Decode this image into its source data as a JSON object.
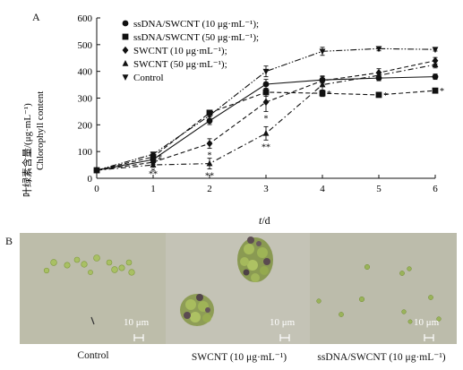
{
  "panels": {
    "a_label": "A",
    "b_label": "B"
  },
  "chart_data": {
    "type": "line",
    "x": [
      0,
      1,
      2,
      3,
      4,
      5,
      6
    ],
    "xlim": [
      0,
      6
    ],
    "ylim": [
      0,
      600
    ],
    "xticks": [
      "0",
      "1",
      "2",
      "3",
      "4",
      "5",
      "6"
    ],
    "yticks": [
      "0",
      "100",
      "200",
      "300",
      "400",
      "500",
      "600"
    ],
    "xlabel_italic": "t",
    "xlabel_rest": "/d",
    "ylabel_cn": "叶绿素含量/(μg·mL⁻¹)",
    "ylabel_en": "Chlorophyll content",
    "grid": false,
    "legend_position": "top-left",
    "series": [
      {
        "name": "ssDNA/SWCNT (10 μg·mL⁻¹);",
        "marker": "circle",
        "dash": "solid",
        "values": [
          30,
          70,
          215,
          352,
          368,
          375,
          380
        ],
        "errors": [
          5,
          8,
          14,
          18,
          12,
          10,
          10
        ],
        "stars": [
          "",
          "*",
          "",
          "",
          "",
          "",
          ""
        ]
      },
      {
        "name": "ssDNA/SWCNT (50 μg·mL⁻¹);",
        "marker": "square",
        "dash": "dash",
        "values": [
          30,
          80,
          245,
          322,
          318,
          312,
          328
        ],
        "errors": [
          5,
          8,
          10,
          15,
          12,
          8,
          8
        ],
        "stars": [
          "",
          "*",
          "",
          "",
          "*",
          "*",
          "*"
        ]
      },
      {
        "name": "SWCNT (10 μg·mL⁻¹);",
        "marker": "diamond",
        "dash": "dash",
        "values": [
          30,
          60,
          130,
          285,
          365,
          395,
          440
        ],
        "errors": [
          5,
          8,
          18,
          35,
          18,
          15,
          12
        ],
        "stars": [
          "",
          "*",
          "*",
          "*",
          "",
          "",
          ""
        ]
      },
      {
        "name": "SWCNT (50 μg·mL⁻¹);",
        "marker": "triangle-up",
        "dash": "dashdot",
        "values": [
          30,
          50,
          55,
          168,
          350,
          385,
          425
        ],
        "errors": [
          5,
          8,
          20,
          25,
          20,
          12,
          12
        ],
        "stars": [
          "",
          "**",
          "**",
          "**",
          "",
          "",
          ""
        ]
      },
      {
        "name": "Control",
        "marker": "triangle-down",
        "dash": "dashdotdot",
        "values": [
          30,
          90,
          235,
          400,
          475,
          485,
          482
        ],
        "errors": [
          5,
          8,
          12,
          20,
          15,
          8,
          6
        ],
        "stars": [
          "",
          "",
          "",
          "",
          "",
          "",
          ""
        ]
      }
    ]
  },
  "micrographs": [
    {
      "caption": "Control",
      "scale_label": "10 μm",
      "background": "#bdbdaa"
    },
    {
      "caption": "SWCNT (10 μg·mL⁻¹)",
      "scale_label": "10 μm",
      "background": "#c4c3b6"
    },
    {
      "caption": "ssDNA/SWCNT (10 μg·mL⁻¹)",
      "scale_label": "10 μm",
      "background": "#bcbcab"
    }
  ]
}
